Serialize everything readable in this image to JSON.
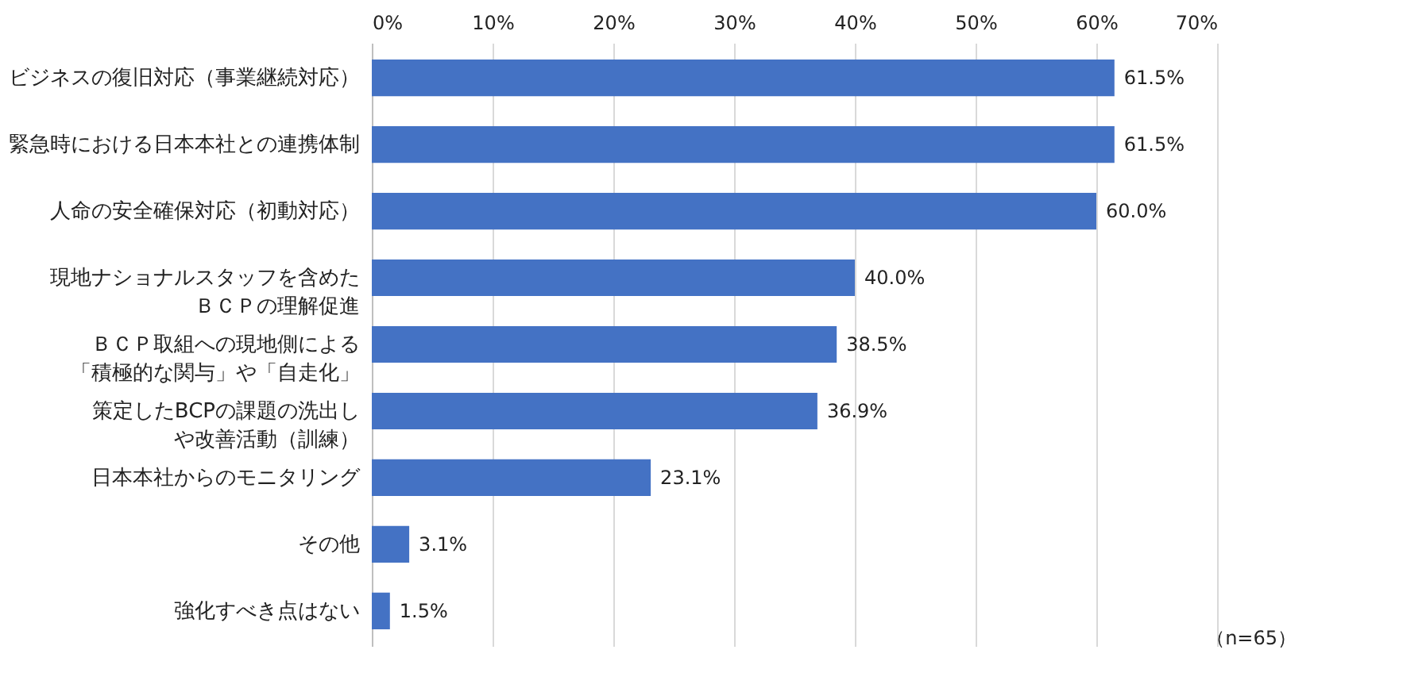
{
  "chart_data": {
    "type": "bar",
    "orientation": "horizontal",
    "categories": [
      "ビジネスの復旧対応（事業継続対応）",
      "緊急時における日本本社との連携体制",
      "人命の安全確保対応（初動対応）",
      "現地ナショナルスタッフを含めたＢＣＰの理解促進",
      "ＢＣＰ取組への現地側による「積極的な関与」や「自走化」",
      "策定したBCPの課題の洗出しや改善活動（訓練）",
      "日本本社からのモニタリング",
      "その他",
      "強化すべき点はない"
    ],
    "values": [
      61.5,
      61.5,
      60.0,
      40.0,
      38.5,
      36.9,
      23.1,
      3.1,
      1.5
    ],
    "value_labels": [
      "61.5%",
      "61.5%",
      "60.0%",
      "40.0%",
      "38.5%",
      "36.9%",
      "23.1%",
      "3.1%",
      "1.5%"
    ],
    "color": "#4472c4",
    "xlim": [
      0,
      70
    ],
    "xticks": [
      {
        "value": 0,
        "label": "0%"
      },
      {
        "value": 10,
        "label": "10%"
      },
      {
        "value": 20,
        "label": "20%"
      },
      {
        "value": 30,
        "label": "30%"
      },
      {
        "value": 40,
        "label": "40%"
      },
      {
        "value": 50,
        "label": "50%"
      },
      {
        "value": 60,
        "label": "60%"
      },
      {
        "value": 70,
        "label": "70%"
      }
    ],
    "grid": "x",
    "annotations": [
      "（n=65）"
    ]
  }
}
